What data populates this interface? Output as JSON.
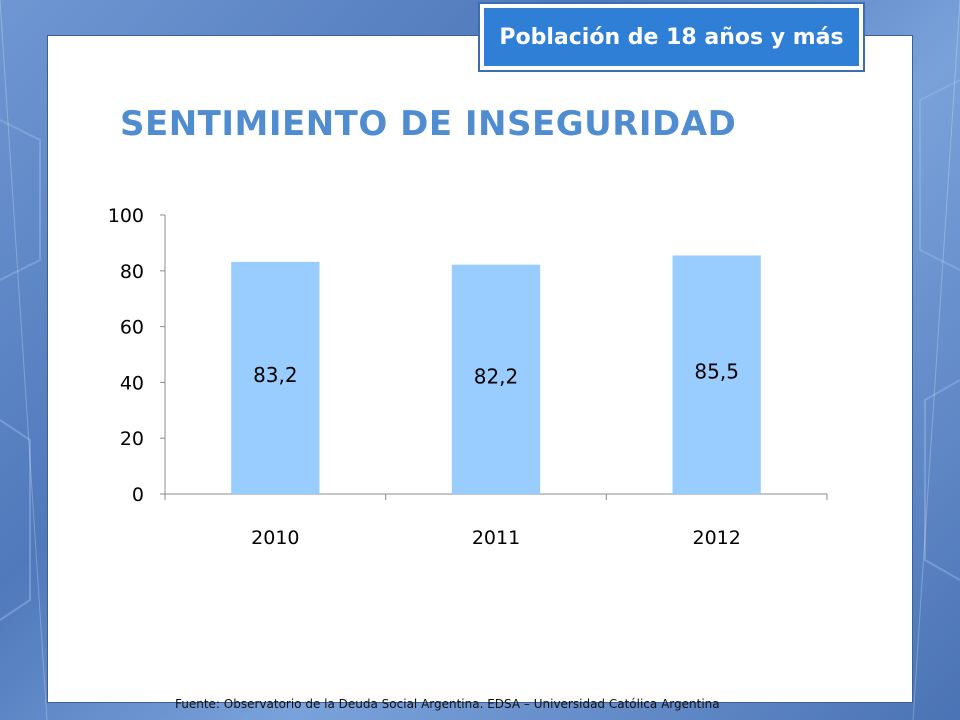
{
  "slide": {
    "tag": "Población de 18 años y más",
    "title": "SENTIMIENTO DE INSEGURIDAD",
    "source": "Fuente:  Observatorio de  la Deuda Social Argentina. EDSA  – Universidad Católica Argentina"
  },
  "colors": {
    "bar": "#99ccff",
    "title": "#4f8cd0",
    "tag_bg": "#2f7fd6",
    "background": "#5f87c4"
  },
  "chart_data": {
    "type": "bar",
    "categories": [
      "2010",
      "2011",
      "2012"
    ],
    "values": [
      83.2,
      82.2,
      85.5
    ],
    "data_labels": [
      "83,2",
      "82,2",
      "85,5"
    ],
    "ylim": [
      0,
      100
    ],
    "yticks": [
      0,
      20,
      40,
      60,
      80,
      100
    ],
    "ytick_labels": [
      "0",
      "20",
      "40",
      "60",
      "80",
      "100"
    ],
    "grid": false,
    "legend": "none"
  }
}
